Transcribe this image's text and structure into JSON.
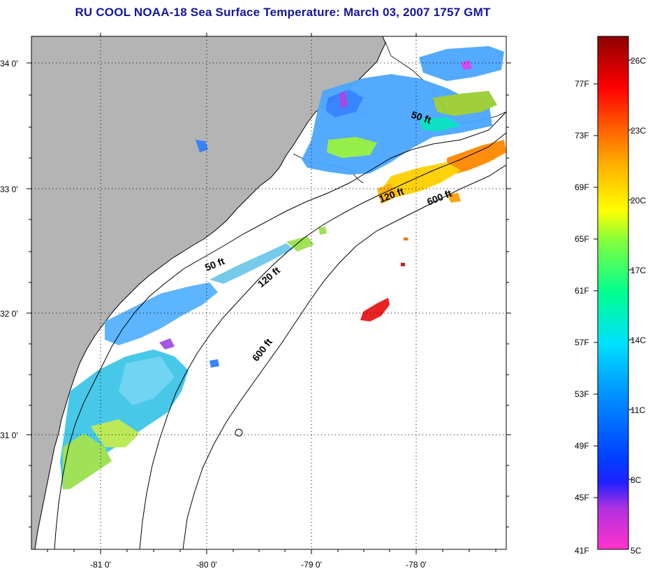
{
  "title": "RU COOL  NOAA-18  Sea Surface Temperature:  March 03, 2007 1757 GMT",
  "axes": {
    "longitude_labels": [
      "-81 0'",
      "-80 0'",
      "-79 0'",
      "-78 0'"
    ],
    "latitude_labels": [
      "34 0'",
      "33 0'",
      "32 0'",
      "31 0'"
    ]
  },
  "contours": {
    "labels": [
      "50 ft",
      "120 ft",
      "600 ft",
      "50 ft",
      "120 ft",
      "600 ft"
    ]
  },
  "colorbar": {
    "fahrenheit": [
      "77F",
      "73F",
      "69F",
      "65F",
      "61F",
      "57F",
      "53F",
      "49F",
      "45F",
      "41F"
    ],
    "celsius": [
      "26C",
      "23C",
      "20C",
      "17C",
      "14C",
      "11C",
      "8C",
      "5C"
    ]
  },
  "colors": {
    "title": "#1414a0",
    "land": "#b4b4b4",
    "cloud_or_nodata": "#ffffff",
    "grid": "#000000"
  }
}
